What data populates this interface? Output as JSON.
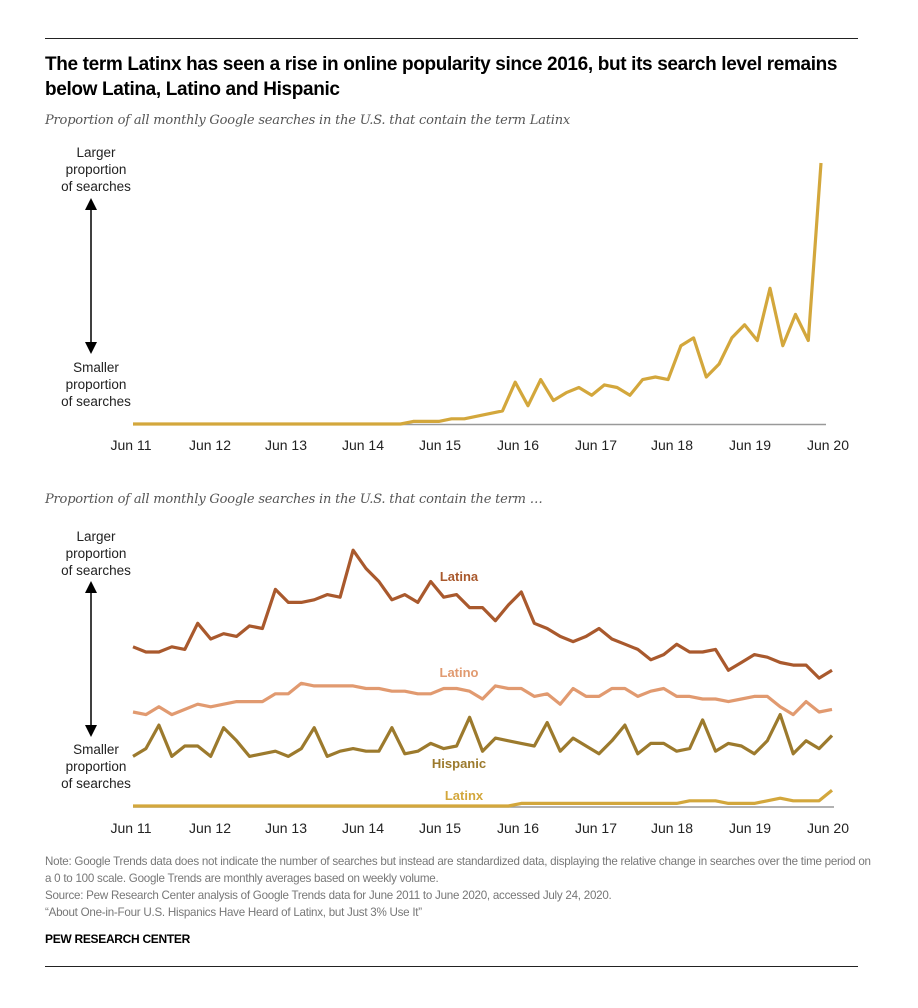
{
  "title": "The term Latinx has seen a rise in online popularity since 2016, but its search level remains below Latina, Latino and Hispanic",
  "colors": {
    "Latinx": "#d3a73c",
    "Latina": "#a9592d",
    "Latino": "#e19a70",
    "Hispanic": "#9c7a2d",
    "baseline": "#999999"
  },
  "axis_labels": {
    "larger": [
      "Larger",
      "proportion",
      "of searches"
    ],
    "smaller": [
      "Smaller",
      "proportion",
      "of searches"
    ]
  },
  "chart_data": [
    {
      "type": "line",
      "subtitle": "Proportion of all monthly Google searches in the U.S. that contain the term Latinx",
      "ylim": [
        0,
        100
      ],
      "grid": false,
      "y_tick_labels": "none",
      "x_tick_labels": [
        "Jun 11",
        "Jun 12",
        "Jun 13",
        "Jun 14",
        "Jun 15",
        "Jun 16",
        "Jun 17",
        "Jun 18",
        "Jun 19",
        "Jun 20"
      ],
      "x": [
        "Jun 2011",
        "Aug 2011",
        "Oct 2011",
        "Dec 2011",
        "Feb 2012",
        "Apr 2012",
        "Jun 2012",
        "Aug 2012",
        "Oct 2012",
        "Dec 2012",
        "Feb 2013",
        "Apr 2013",
        "Jun 2013",
        "Aug 2013",
        "Oct 2013",
        "Dec 2013",
        "Feb 2014",
        "Apr 2014",
        "Jun 2014",
        "Aug 2014",
        "Oct 2014",
        "Dec 2014",
        "Feb 2015",
        "Apr 2015",
        "Jun 2015",
        "Aug 2015",
        "Oct 2015",
        "Dec 2015",
        "Feb 2016",
        "Apr 2016",
        "Jun 2016",
        "Aug 2016",
        "Oct 2016",
        "Dec 2016",
        "Feb 2017",
        "Apr 2017",
        "Jun 2017",
        "Aug 2017",
        "Oct 2017",
        "Dec 2017",
        "Feb 2018",
        "Apr 2018",
        "Jun 2018",
        "Aug 2018",
        "Oct 2018",
        "Dec 2018",
        "Feb 2019",
        "Apr 2019",
        "Jun 2019",
        "Aug 2019",
        "Oct 2019",
        "Dec 2019",
        "Feb 2020",
        "Apr 2020",
        "Jun 2020"
      ],
      "series": [
        {
          "key": "Latinx",
          "values": [
            0,
            0,
            0,
            0,
            0,
            0,
            0,
            0,
            0,
            0,
            0,
            0,
            0,
            0,
            0,
            0,
            0,
            0,
            0,
            0,
            0,
            0,
            1,
            1,
            1,
            2,
            2,
            3,
            4,
            5,
            16,
            7,
            17,
            9,
            12,
            14,
            11,
            15,
            14,
            11,
            17,
            18,
            17,
            30,
            33,
            18,
            23,
            33,
            38,
            32,
            52,
            30,
            42,
            32,
            100
          ]
        }
      ]
    },
    {
      "type": "line",
      "subtitle": "Proportion of all monthly Google searches in the U.S. that contain the term …",
      "ylim": [
        0,
        100
      ],
      "grid": false,
      "y_tick_labels": "none",
      "x_tick_labels": [
        "Jun 11",
        "Jun 12",
        "Jun 13",
        "Jun 14",
        "Jun 15",
        "Jun 16",
        "Jun 17",
        "Jun 18",
        "Jun 19",
        "Jun 20"
      ],
      "x": [
        "Jun 2011",
        "Aug 2011",
        "Oct 2011",
        "Dec 2011",
        "Feb 2012",
        "Apr 2012",
        "Jun 2012",
        "Aug 2012",
        "Oct 2012",
        "Dec 2012",
        "Feb 2013",
        "Apr 2013",
        "Jun 2013",
        "Aug 2013",
        "Oct 2013",
        "Dec 2013",
        "Feb 2014",
        "Apr 2014",
        "Jun 2014",
        "Aug 2014",
        "Oct 2014",
        "Dec 2014",
        "Feb 2015",
        "Apr 2015",
        "Jun 2015",
        "Aug 2015",
        "Oct 2015",
        "Dec 2015",
        "Feb 2016",
        "Apr 2016",
        "Jun 2016",
        "Aug 2016",
        "Oct 2016",
        "Dec 2016",
        "Feb 2017",
        "Apr 2017",
        "Jun 2017",
        "Aug 2017",
        "Oct 2017",
        "Dec 2017",
        "Feb 2018",
        "Apr 2018",
        "Jun 2018",
        "Aug 2018",
        "Oct 2018",
        "Dec 2018",
        "Feb 2019",
        "Apr 2019",
        "Jun 2019",
        "Aug 2019",
        "Oct 2019",
        "Dec 2019",
        "Feb 2020",
        "Apr 2020",
        "Jun 2020"
      ],
      "series": [
        {
          "name": "Latina",
          "values": [
            61,
            59,
            59,
            61,
            60,
            70,
            64,
            66,
            65,
            69,
            68,
            83,
            78,
            78,
            79,
            81,
            80,
            98,
            91,
            86,
            79,
            81,
            78,
            86,
            80,
            81,
            76,
            76,
            71,
            77,
            82,
            70,
            68,
            65,
            63,
            65,
            68,
            64,
            62,
            60,
            56,
            58,
            62,
            59,
            59,
            60,
            52,
            55,
            58,
            57,
            55,
            54,
            54,
            49,
            52
          ]
        },
        {
          "name": "Latino",
          "values": [
            36,
            35,
            38,
            35,
            37,
            39,
            38,
            39,
            40,
            40,
            40,
            43,
            43,
            47,
            46,
            46,
            46,
            46,
            45,
            45,
            44,
            44,
            43,
            43,
            45,
            45,
            44,
            41,
            46,
            45,
            45,
            42,
            43,
            39,
            45,
            42,
            42,
            45,
            45,
            42,
            44,
            45,
            42,
            42,
            41,
            41,
            40,
            41,
            42,
            42,
            38,
            35,
            40,
            36,
            37
          ]
        },
        {
          "name": "Hispanic",
          "values": [
            19,
            22,
            31,
            19,
            23,
            23,
            19,
            30,
            25,
            19,
            20,
            21,
            19,
            22,
            30,
            19,
            21,
            22,
            21,
            21,
            30,
            20,
            21,
            24,
            22,
            23,
            34,
            21,
            26,
            25,
            24,
            23,
            32,
            21,
            26,
            23,
            20,
            25,
            31,
            20,
            24,
            24,
            21,
            22,
            33,
            21,
            24,
            23,
            20,
            25,
            35,
            20,
            25,
            22,
            27
          ]
        },
        {
          "name": "Latinx",
          "values": [
            0,
            0,
            0,
            0,
            0,
            0,
            0,
            0,
            0,
            0,
            0,
            0,
            0,
            0,
            0,
            0,
            0,
            0,
            0,
            0,
            0,
            0,
            0,
            0,
            0,
            0,
            0,
            0,
            0,
            0,
            1,
            1,
            1,
            1,
            1,
            1,
            1,
            1,
            1,
            1,
            1,
            1,
            1,
            2,
            2,
            2,
            1,
            1,
            1,
            2,
            3,
            2,
            2,
            2,
            6
          ]
        }
      ]
    }
  ],
  "notes": [
    "Note: Google Trends data does not indicate the number of searches but instead are standardized data, displaying the relative change in searches over the time period on a 0 to 100 scale. Google Trends are monthly averages based on weekly volume.",
    "Source: Pew Research Center analysis of Google Trends data for June 2011 to June 2020, accessed July 24, 2020.",
    "“About One-in-Four U.S. Hispanics Have Heard of Latinx, but Just 3% Use It”"
  ],
  "brand": "PEW RESEARCH CENTER"
}
